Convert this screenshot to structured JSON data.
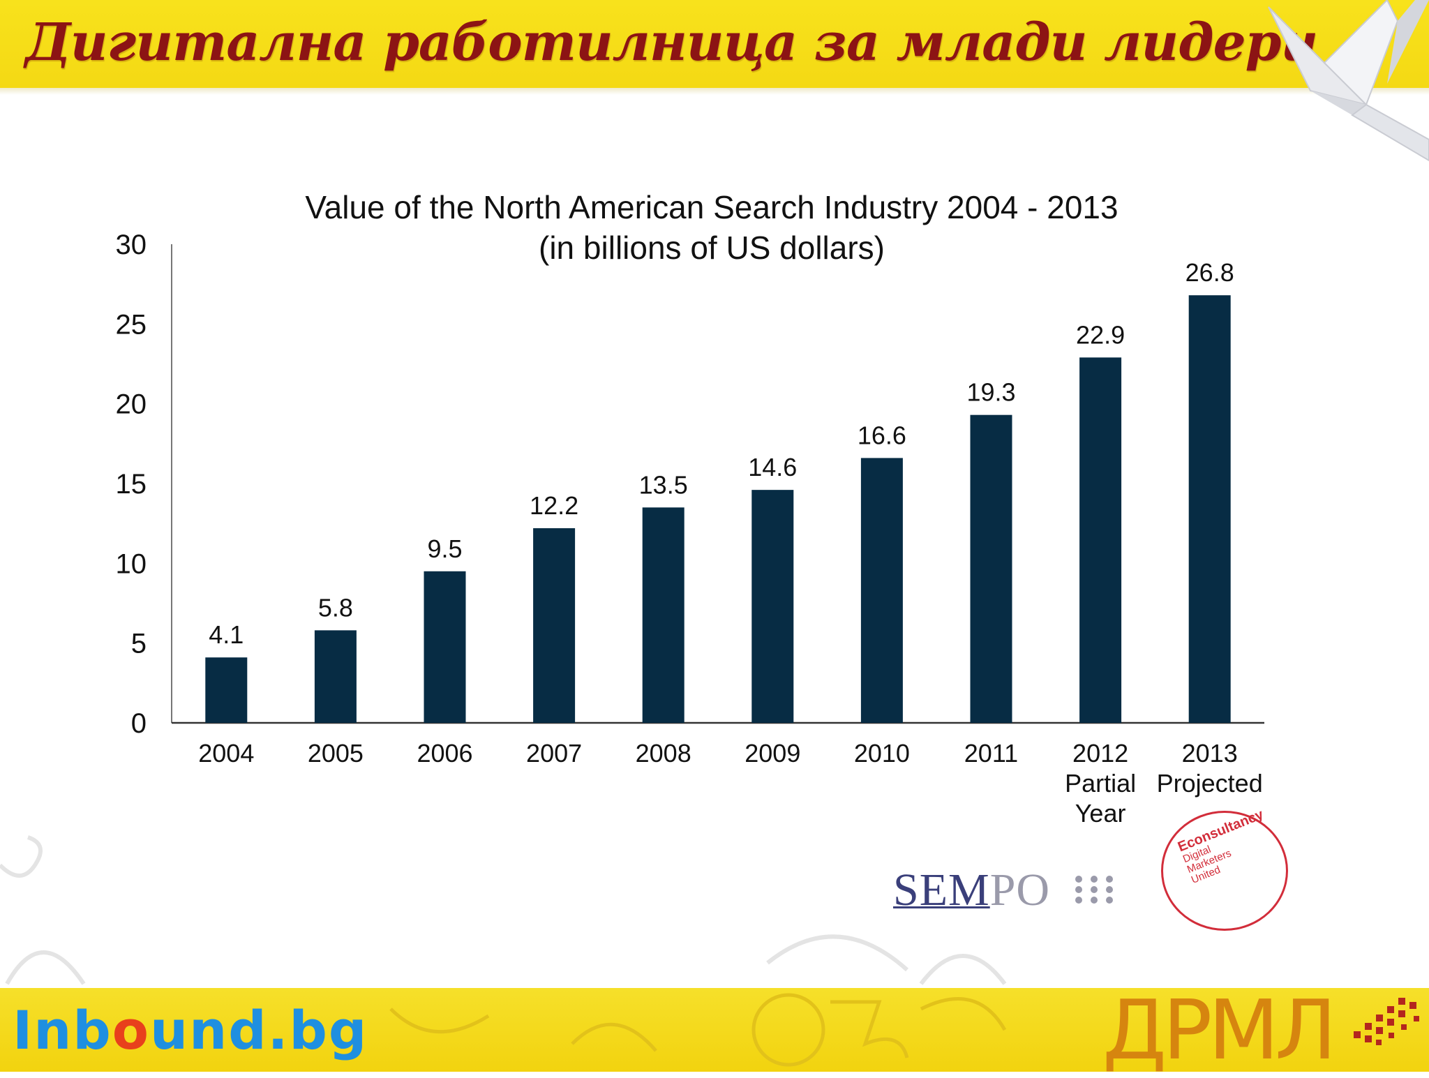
{
  "header": {
    "title": "Дигитална работилница за млади лидери"
  },
  "chart_data": {
    "type": "bar",
    "title": "Value of the North American Search Industry 2004 - 2013",
    "subtitle": "(in billions of US dollars)",
    "categories": [
      [
        "2004"
      ],
      [
        "2005"
      ],
      [
        "2006"
      ],
      [
        "2007"
      ],
      [
        "2008"
      ],
      [
        "2009"
      ],
      [
        "2010"
      ],
      [
        "2011"
      ],
      [
        "2012",
        "Partial",
        "Year"
      ],
      [
        "2013",
        "Projected"
      ]
    ],
    "values": [
      4.1,
      5.8,
      9.5,
      12.2,
      13.5,
      14.6,
      16.6,
      19.3,
      22.9,
      26.8
    ],
    "value_labels": [
      "4.1",
      "5.8",
      "9.5",
      "12.2",
      "13.5",
      "14.6",
      "16.6",
      "19.3",
      "22.9",
      "26.8"
    ],
    "ylim": [
      0,
      30
    ],
    "yticks": [
      "0",
      "5",
      "10",
      "15",
      "20",
      "25",
      "30"
    ],
    "xlabel": "",
    "ylabel": "",
    "grid": false,
    "bar_color": "#072c44"
  },
  "sources": {
    "sempo": {
      "sem": "SEM",
      "po": "PO"
    },
    "econsultancy": {
      "name": "Econsultancy",
      "line1": "Digital",
      "line2": "Marketers",
      "line3": "United"
    }
  },
  "footer": {
    "left_logo": {
      "part1": "Inb",
      "part2": "o",
      "part3": "und.bg"
    },
    "right_logo": "ДРМЛ"
  },
  "colors": {
    "banner": "#f6de1a",
    "title": "#8c1414",
    "bar": "#072c44"
  }
}
